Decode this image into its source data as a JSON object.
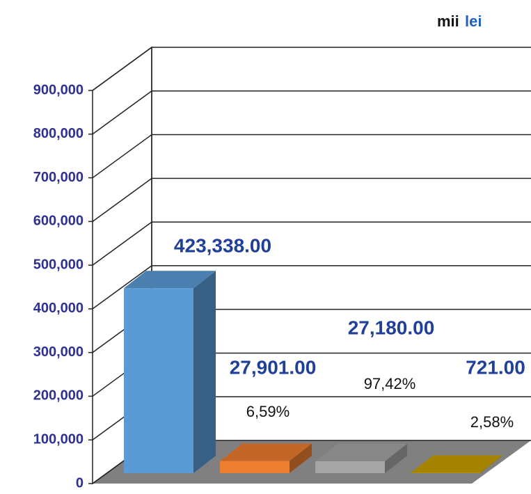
{
  "chart_data": {
    "type": "bar",
    "title_words": [
      "mii",
      "lei"
    ],
    "categories": [
      null,
      null,
      null,
      null
    ],
    "values": [
      423338,
      27901,
      27180,
      721
    ],
    "value_labels": [
      "423,338.00",
      "27,901.00",
      "27,180.00",
      "721.00"
    ],
    "colors": [
      "#5b9bd5",
      "#ed7d31",
      "#a5a5a5",
      "#c9a000"
    ],
    "annotations": [
      "6,59%",
      "97,42%",
      "2,58%"
    ],
    "ylim": [
      0,
      900000
    ],
    "yticks": [
      0,
      {
        "value": 100000,
        "label": "100,000"
      },
      {
        "value": 200000,
        "label": "200,000"
      },
      {
        "value": 300000,
        "label": "300,000"
      },
      {
        "value": 400000,
        "label": "400,000"
      },
      {
        "value": 500000,
        "label": "500,000"
      },
      {
        "value": 600000,
        "label": "600,000"
      },
      {
        "value": 700000,
        "label": "700,000"
      },
      {
        "value": 800000,
        "label": "800,000"
      },
      {
        "value": 900000,
        "label": "900,000"
      }
    ],
    "grid": true
  }
}
